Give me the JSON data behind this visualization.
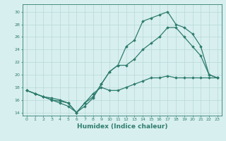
{
  "xlabel": "Humidex (Indice chaleur)",
  "x": [
    0,
    1,
    2,
    3,
    4,
    5,
    6,
    7,
    8,
    9,
    10,
    11,
    12,
    13,
    14,
    15,
    16,
    17,
    18,
    19,
    20,
    21,
    22,
    23
  ],
  "line1": [
    17.5,
    17.0,
    16.5,
    16.0,
    15.5,
    15.0,
    14.0,
    15.0,
    16.3,
    18.5,
    20.5,
    21.5,
    24.5,
    25.5,
    28.5,
    29.0,
    29.5,
    30.0,
    28.0,
    27.5,
    26.5,
    24.5,
    20.0,
    19.5
  ],
  "line2": [
    17.5,
    17.0,
    16.5,
    16.0,
    15.8,
    15.5,
    14.0,
    15.5,
    16.5,
    18.5,
    20.5,
    21.5,
    21.5,
    22.5,
    24.0,
    25.0,
    26.0,
    27.5,
    27.5,
    26.0,
    24.5,
    23.0,
    20.0,
    19.5
  ],
  "line3": [
    17.5,
    17.0,
    16.5,
    16.3,
    16.0,
    15.5,
    14.0,
    15.5,
    17.0,
    18.0,
    17.5,
    17.5,
    18.0,
    18.5,
    19.0,
    19.5,
    19.5,
    19.8,
    19.5,
    19.5,
    19.5,
    19.5,
    19.5,
    19.5
  ],
  "line_color": "#2e7d6e",
  "bg_color": "#d8efef",
  "grid_color": "#b8d8d8",
  "ylim": [
    13.5,
    31.2
  ],
  "xlim": [
    -0.5,
    23.5
  ],
  "yticks": [
    14,
    16,
    18,
    20,
    22,
    24,
    26,
    28,
    30
  ],
  "xticks": [
    0,
    1,
    2,
    3,
    4,
    5,
    6,
    7,
    8,
    9,
    10,
    11,
    12,
    13,
    14,
    15,
    16,
    17,
    18,
    19,
    20,
    21,
    22,
    23
  ],
  "marker": "D",
  "markersize": 1.8,
  "linewidth": 0.9,
  "tick_fontsize": 4.5,
  "xlabel_fontsize": 6.5
}
